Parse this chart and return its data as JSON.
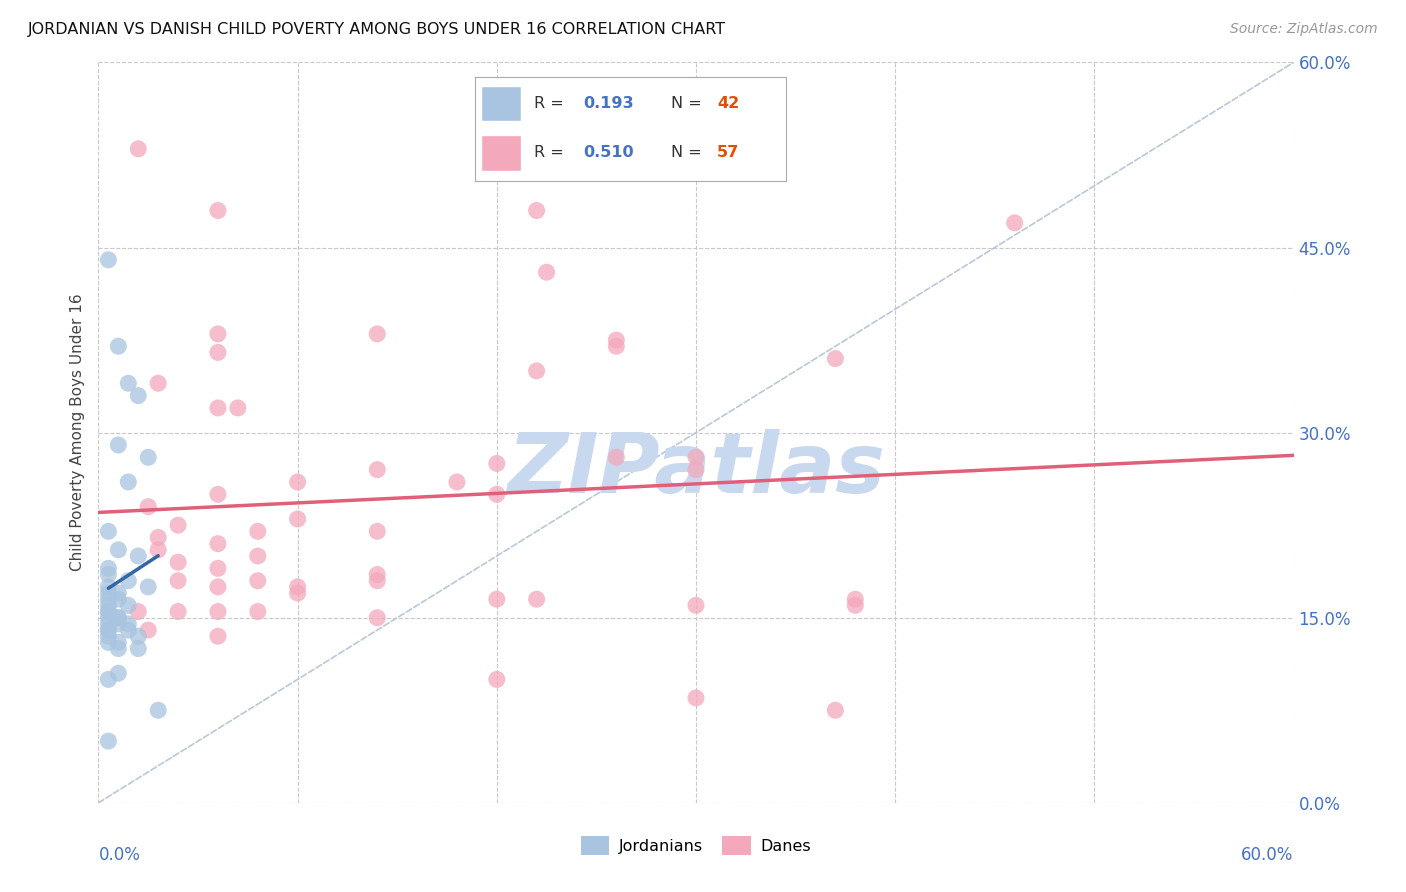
{
  "title": "JORDANIAN VS DANISH CHILD POVERTY AMONG BOYS UNDER 16 CORRELATION CHART",
  "source": "Source: ZipAtlas.com",
  "ylabel": "Child Poverty Among Boys Under 16",
  "ytick_values": [
    0.0,
    15.0,
    30.0,
    45.0,
    60.0
  ],
  "xmin": 0.0,
  "xmax": 60.0,
  "ymin": 0.0,
  "ymax": 60.0,
  "jordan_color": "#a8c4e0",
  "dane_color": "#f4a8bc",
  "jordan_line_color": "#3465a4",
  "dane_line_color": "#e0607a",
  "diagonal_color": "#b8c8d8",
  "R_jordan": 0.193,
  "N_jordan": 42,
  "R_dane": 0.51,
  "N_dane": 57,
  "legend_label_jordan": "Jordanians",
  "legend_label_dane": "Danes",
  "background_color": "#ffffff",
  "watermark_color": "#c8d8ef",
  "jordan_points": [
    [
      0.5,
      44.0
    ],
    [
      1.0,
      37.0
    ],
    [
      1.5,
      34.0
    ],
    [
      2.0,
      33.0
    ],
    [
      1.0,
      29.0
    ],
    [
      2.5,
      28.0
    ],
    [
      1.5,
      26.0
    ],
    [
      0.5,
      22.0
    ],
    [
      1.0,
      20.5
    ],
    [
      2.0,
      20.0
    ],
    [
      0.5,
      19.0
    ],
    [
      0.5,
      18.5
    ],
    [
      1.5,
      18.0
    ],
    [
      2.5,
      17.5
    ],
    [
      0.5,
      17.5
    ],
    [
      1.0,
      17.0
    ],
    [
      0.5,
      17.0
    ],
    [
      1.0,
      16.5
    ],
    [
      0.5,
      16.5
    ],
    [
      1.5,
      16.0
    ],
    [
      0.5,
      16.0
    ],
    [
      0.5,
      15.5
    ],
    [
      0.5,
      15.5
    ],
    [
      1.0,
      15.0
    ],
    [
      0.5,
      15.0
    ],
    [
      1.0,
      15.0
    ],
    [
      1.5,
      14.5
    ],
    [
      0.5,
      14.5
    ],
    [
      1.0,
      14.5
    ],
    [
      0.5,
      14.0
    ],
    [
      1.5,
      14.0
    ],
    [
      0.5,
      14.0
    ],
    [
      2.0,
      13.5
    ],
    [
      0.5,
      13.5
    ],
    [
      1.0,
      13.0
    ],
    [
      0.5,
      13.0
    ],
    [
      1.0,
      12.5
    ],
    [
      2.0,
      12.5
    ],
    [
      1.0,
      10.5
    ],
    [
      0.5,
      10.0
    ],
    [
      3.0,
      7.5
    ],
    [
      0.5,
      5.0
    ]
  ],
  "dane_points": [
    [
      2.0,
      53.0
    ],
    [
      6.0,
      48.0
    ],
    [
      22.0,
      48.0
    ],
    [
      22.5,
      43.0
    ],
    [
      46.0,
      47.0
    ],
    [
      6.0,
      38.0
    ],
    [
      14.0,
      38.0
    ],
    [
      26.0,
      37.5
    ],
    [
      26.0,
      37.0
    ],
    [
      6.0,
      36.5
    ],
    [
      37.0,
      36.0
    ],
    [
      22.0,
      35.0
    ],
    [
      3.0,
      34.0
    ],
    [
      6.0,
      32.0
    ],
    [
      7.0,
      32.0
    ],
    [
      26.0,
      28.0
    ],
    [
      30.0,
      28.0
    ],
    [
      20.0,
      27.5
    ],
    [
      14.0,
      27.0
    ],
    [
      30.0,
      27.0
    ],
    [
      10.0,
      26.0
    ],
    [
      18.0,
      26.0
    ],
    [
      6.0,
      25.0
    ],
    [
      20.0,
      25.0
    ],
    [
      2.5,
      24.0
    ],
    [
      10.0,
      23.0
    ],
    [
      4.0,
      22.5
    ],
    [
      8.0,
      22.0
    ],
    [
      14.0,
      22.0
    ],
    [
      3.0,
      21.5
    ],
    [
      6.0,
      21.0
    ],
    [
      3.0,
      20.5
    ],
    [
      8.0,
      20.0
    ],
    [
      4.0,
      19.5
    ],
    [
      6.0,
      19.0
    ],
    [
      14.0,
      18.5
    ],
    [
      4.0,
      18.0
    ],
    [
      8.0,
      18.0
    ],
    [
      14.0,
      18.0
    ],
    [
      6.0,
      17.5
    ],
    [
      10.0,
      17.5
    ],
    [
      10.0,
      17.0
    ],
    [
      20.0,
      16.5
    ],
    [
      22.0,
      16.5
    ],
    [
      30.0,
      16.0
    ],
    [
      38.0,
      16.0
    ],
    [
      38.0,
      16.5
    ],
    [
      2.0,
      15.5
    ],
    [
      4.0,
      15.5
    ],
    [
      6.0,
      15.5
    ],
    [
      8.0,
      15.5
    ],
    [
      14.0,
      15.0
    ],
    [
      2.5,
      14.0
    ],
    [
      6.0,
      13.5
    ],
    [
      20.0,
      10.0
    ],
    [
      30.0,
      8.5
    ],
    [
      37.0,
      7.5
    ]
  ]
}
